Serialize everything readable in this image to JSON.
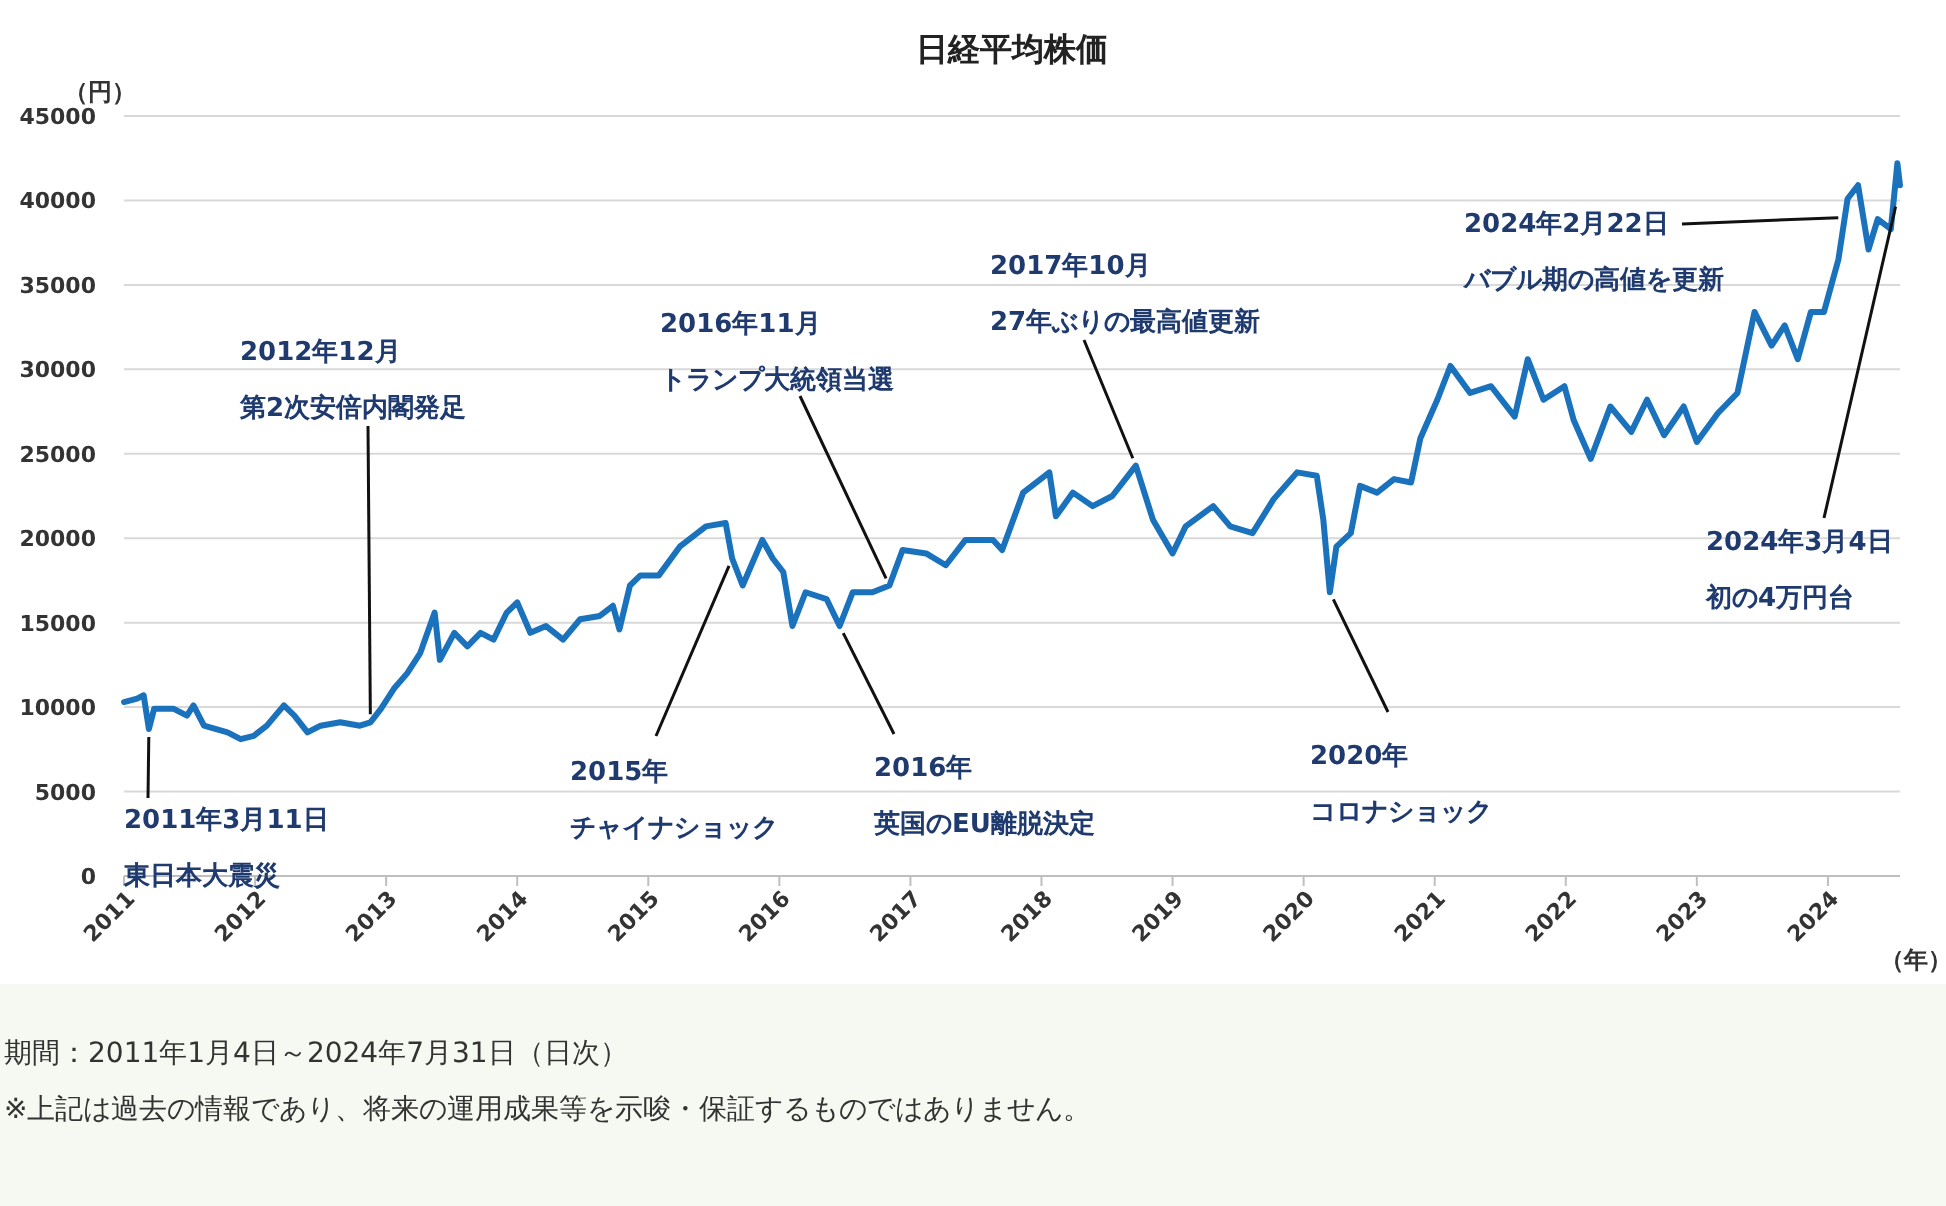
{
  "chart_data": {
    "type": "line",
    "title": "日経平均株価",
    "xlabel": "（年）",
    "ylabel": "（円）",
    "color": "#1a72bd",
    "grid": "y",
    "xlim": [
      2011,
      2024.55
    ],
    "ylim": [
      0,
      45000
    ],
    "xticks": [
      2011,
      2012,
      2013,
      2014,
      2015,
      2016,
      2017,
      2018,
      2019,
      2020,
      2021,
      2022,
      2023,
      2024
    ],
    "yticks": [
      0,
      5000,
      10000,
      15000,
      20000,
      25000,
      30000,
      35000,
      40000,
      45000
    ],
    "x": [
      2011.0,
      2011.1,
      2011.15,
      2011.19,
      2011.23,
      2011.38,
      2011.48,
      2011.53,
      2011.61,
      2011.79,
      2011.89,
      2011.99,
      2012.09,
      2012.22,
      2012.3,
      2012.4,
      2012.5,
      2012.65,
      2012.8,
      2012.88,
      2012.96,
      2013.06,
      2013.16,
      2013.26,
      2013.37,
      2013.41,
      2013.52,
      2013.62,
      2013.72,
      2013.82,
      2013.92,
      2014.0,
      2014.1,
      2014.22,
      2014.35,
      2014.48,
      2014.63,
      2014.73,
      2014.78,
      2014.86,
      2014.94,
      2015.08,
      2015.24,
      2015.44,
      2015.59,
      2015.64,
      2015.72,
      2015.87,
      2015.95,
      2016.03,
      2016.1,
      2016.2,
      2016.36,
      2016.46,
      2016.56,
      2016.71,
      2016.84,
      2016.94,
      2017.12,
      2017.27,
      2017.42,
      2017.63,
      2017.7,
      2017.86,
      2018.06,
      2018.11,
      2018.24,
      2018.39,
      2018.54,
      2018.72,
      2018.85,
      2019.0,
      2019.1,
      2019.31,
      2019.44,
      2019.61,
      2019.77,
      2019.95,
      2020.1,
      2020.15,
      2020.2,
      2020.25,
      2020.36,
      2020.43,
      2020.56,
      2020.69,
      2020.82,
      2020.89,
      2021.02,
      2021.12,
      2021.27,
      2021.43,
      2021.61,
      2021.71,
      2021.83,
      2021.99,
      2022.06,
      2022.19,
      2022.34,
      2022.5,
      2022.62,
      2022.75,
      2022.9,
      2023.0,
      2023.16,
      2023.31,
      2023.44,
      2023.57,
      2023.67,
      2023.77,
      2023.87,
      2023.97,
      2024.08,
      2024.15,
      2024.23,
      2024.31,
      2024.38,
      2024.48,
      2024.53,
      2024.55
    ],
    "values": [
      10300,
      10500,
      10700,
      8700,
      9900,
      9900,
      9500,
      10100,
      8900,
      8500,
      8100,
      8300,
      8900,
      10100,
      9500,
      8500,
      8900,
      9100,
      8900,
      9100,
      9900,
      11100,
      12000,
      13200,
      15600,
      12800,
      14400,
      13600,
      14400,
      14000,
      15600,
      16200,
      14400,
      14800,
      14000,
      15200,
      15400,
      16000,
      14600,
      17200,
      17800,
      17800,
      19500,
      20700,
      20900,
      18800,
      17200,
      19900,
      18800,
      18000,
      14800,
      16800,
      16400,
      14800,
      16800,
      16800,
      17200,
      19300,
      19100,
      18400,
      19900,
      19900,
      19300,
      22700,
      23900,
      21300,
      22700,
      21900,
      22500,
      24300,
      21100,
      19100,
      20700,
      21900,
      20700,
      20300,
      22300,
      23900,
      23700,
      21100,
      16800,
      19500,
      20300,
      23100,
      22700,
      23500,
      23300,
      25900,
      28200,
      30200,
      28600,
      29000,
      27200,
      30600,
      28200,
      29000,
      27000,
      24700,
      27800,
      26300,
      28200,
      26100,
      27800,
      25700,
      27400,
      28600,
      33400,
      31400,
      32600,
      30600,
      33400,
      33400,
      36500,
      40100,
      40900,
      37100,
      38900,
      38300,
      42200,
      40900
    ],
    "annotations": [
      {
        "text": "2011年3月11日",
        "x": 2011.19,
        "y": 8700
      },
      "東日本大震災",
      "2012年12月",
      {
        "text": "第2次安倍内閣発足",
        "x": 2012.88,
        "y": 9100
      },
      {
        "text": "2015年",
        "x": 2015.64,
        "y": 18800
      },
      "チャイナショック",
      "2016年11月",
      {
        "text": "トランプ大統領当選",
        "x": 2016.84,
        "y": 17200
      },
      {
        "text": "2016年",
        "x": 2016.46,
        "y": 14800
      },
      "英国のEU離脱決定",
      "2017年10月",
      {
        "text": "27年ぶりの最高値更新",
        "x": 2018.72,
        "y": 24300
      },
      {
        "text": "2020年",
        "x": 2020.2,
        "y": 16800
      },
      "コロナショック",
      {
        "text": "2024年2月22日",
        "x": 2024.14,
        "y": 39000
      },
      "バブル期の高値を更新",
      {
        "text": "2024年3月4日",
        "x": 2024.53,
        "y": 40100
      },
      "初の4万円台",
      "期間：2011年1月4日～2024年7月31日（日次）",
      "※上記は過去の情報であり、将来の運用成果等を示唆・保証するものではありません。"
    ]
  }
}
